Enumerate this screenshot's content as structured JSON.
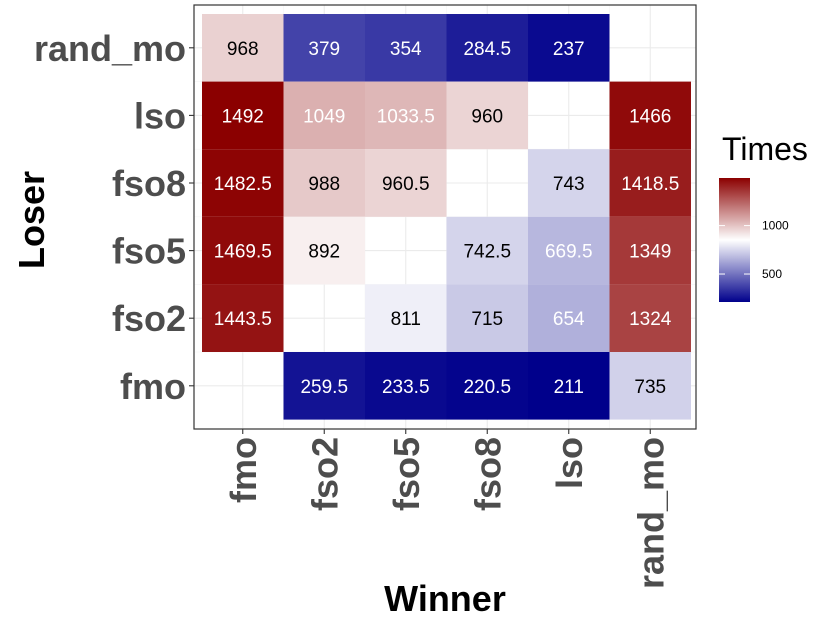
{
  "chart_data": {
    "type": "heatmap",
    "xlabel": "Winner",
    "ylabel": "Loser",
    "x_categories": [
      "fmo",
      "fso2",
      "fso5",
      "fso8",
      "lso",
      "rand_mo"
    ],
    "y_categories": [
      "fmo",
      "fso2",
      "fso5",
      "fso8",
      "lso",
      "rand_mo"
    ],
    "cells": [
      {
        "winner": "fmo",
        "loser": "rand_mo",
        "value": 968,
        "label": "968"
      },
      {
        "winner": "fso2",
        "loser": "rand_mo",
        "value": 379,
        "label": "379"
      },
      {
        "winner": "fso5",
        "loser": "rand_mo",
        "value": 354,
        "label": "354"
      },
      {
        "winner": "fso8",
        "loser": "rand_mo",
        "value": 284.5,
        "label": "284.5"
      },
      {
        "winner": "lso",
        "loser": "rand_mo",
        "value": 237,
        "label": "237"
      },
      {
        "winner": "fmo",
        "loser": "lso",
        "value": 1492,
        "label": "1492"
      },
      {
        "winner": "fso2",
        "loser": "lso",
        "value": 1049,
        "label": "1049"
      },
      {
        "winner": "fso5",
        "loser": "lso",
        "value": 1033.5,
        "label": "1033.5"
      },
      {
        "winner": "fso8",
        "loser": "lso",
        "value": 960,
        "label": "960"
      },
      {
        "winner": "rand_mo",
        "loser": "lso",
        "value": 1466,
        "label": "1466"
      },
      {
        "winner": "fmo",
        "loser": "fso8",
        "value": 1482.5,
        "label": "1482.5"
      },
      {
        "winner": "fso2",
        "loser": "fso8",
        "value": 988,
        "label": "988"
      },
      {
        "winner": "fso5",
        "loser": "fso8",
        "value": 960.5,
        "label": "960.5"
      },
      {
        "winner": "lso",
        "loser": "fso8",
        "value": 743,
        "label": "743"
      },
      {
        "winner": "rand_mo",
        "loser": "fso8",
        "value": 1418.5,
        "label": "1418.5"
      },
      {
        "winner": "fmo",
        "loser": "fso5",
        "value": 1469.5,
        "label": "1469.5"
      },
      {
        "winner": "fso2",
        "loser": "fso5",
        "value": 892,
        "label": "892"
      },
      {
        "winner": "fso8",
        "loser": "fso5",
        "value": 742.5,
        "label": "742.5"
      },
      {
        "winner": "lso",
        "loser": "fso5",
        "value": 669.5,
        "label": "669.5"
      },
      {
        "winner": "rand_mo",
        "loser": "fso5",
        "value": 1349,
        "label": "1349"
      },
      {
        "winner": "fmo",
        "loser": "fso2",
        "value": 1443.5,
        "label": "1443.5"
      },
      {
        "winner": "fso5",
        "loser": "fso2",
        "value": 811,
        "label": "811"
      },
      {
        "winner": "fso8",
        "loser": "fso2",
        "value": 715,
        "label": "715"
      },
      {
        "winner": "lso",
        "loser": "fso2",
        "value": 654,
        "label": "654"
      },
      {
        "winner": "rand_mo",
        "loser": "fso2",
        "value": 1324,
        "label": "1324"
      },
      {
        "winner": "fso2",
        "loser": "fmo",
        "value": 259.5,
        "label": "259.5"
      },
      {
        "winner": "fso5",
        "loser": "fmo",
        "value": 233.5,
        "label": "233.5"
      },
      {
        "winner": "fso8",
        "loser": "fmo",
        "value": 220.5,
        "label": "220.5"
      },
      {
        "winner": "lso",
        "loser": "fmo",
        "value": 211,
        "label": "211"
      },
      {
        "winner": "rand_mo",
        "loser": "fmo",
        "value": 735,
        "label": "735"
      }
    ],
    "legend": {
      "title": "Times",
      "ticks": [
        500,
        1000
      ],
      "tick_labels": [
        "500",
        "1000"
      ],
      "range": [
        211,
        1492
      ],
      "midpoint": 851.5,
      "colors": {
        "low": "#00008b",
        "mid": "#ffffff",
        "high": "#8b0000"
      }
    },
    "grid": true,
    "panel_border": true
  }
}
